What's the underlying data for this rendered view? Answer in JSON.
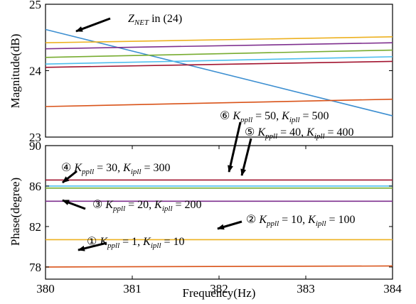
{
  "chart_data": [
    {
      "type": "line",
      "panel": "magnitude",
      "ylabel": "Magnitude(dB)",
      "xlim": [
        380,
        384
      ],
      "ylim": [
        23,
        25
      ],
      "yticks": [
        23,
        24,
        25
      ],
      "grid": false,
      "series": [
        {
          "label": "ZNET in (24)",
          "color": "#3d8fd1",
          "x": [
            380,
            384
          ],
          "y": [
            24.62,
            23.32
          ]
        },
        {
          "color": "#edb120",
          "x": [
            380,
            384
          ],
          "y": [
            24.42,
            24.51
          ]
        },
        {
          "color": "#7e2f8e",
          "x": [
            380,
            384
          ],
          "y": [
            24.33,
            24.42
          ]
        },
        {
          "color": "#77ac30",
          "x": [
            380,
            384
          ],
          "y": [
            24.2,
            24.31
          ]
        },
        {
          "color": "#4dbeee",
          "x": [
            380,
            384
          ],
          "y": [
            24.1,
            24.21
          ]
        },
        {
          "color": "#a2142f",
          "x": [
            380,
            384
          ],
          "y": [
            24.05,
            24.14
          ]
        },
        {
          "color": "#d95319",
          "x": [
            380,
            384
          ],
          "y": [
            23.46,
            23.57
          ]
        }
      ],
      "annotations": [
        {
          "text": "Z",
          "sub": "NET",
          "suffix": " in (24)"
        }
      ]
    },
    {
      "type": "line",
      "panel": "phase",
      "ylabel": "Phase(degree)",
      "xlabel": "Frequency(Hz)",
      "xlim": [
        380,
        384
      ],
      "ylim": [
        76.8,
        90
      ],
      "xticks": [
        380,
        381,
        382,
        383,
        384
      ],
      "yticks": [
        78,
        82,
        86,
        90
      ],
      "grid": false,
      "series": [
        {
          "color": "#a2142f",
          "x": [
            380,
            384
          ],
          "y": [
            86.6,
            86.6
          ]
        },
        {
          "color": "#4dbeee",
          "x": [
            380,
            384
          ],
          "y": [
            86.0,
            86.0
          ]
        },
        {
          "color": "#77ac30",
          "x": [
            380,
            384
          ],
          "y": [
            85.8,
            85.8
          ]
        },
        {
          "color": "#7e2f8e",
          "x": [
            380,
            384
          ],
          "y": [
            84.5,
            84.5
          ]
        },
        {
          "color": "#edb120",
          "x": [
            380,
            384
          ],
          "y": [
            80.7,
            80.7
          ]
        },
        {
          "color": "#d95319",
          "x": [
            380,
            384
          ],
          "y": [
            78.0,
            78.1
          ]
        }
      ],
      "annotations": [
        {
          "num": "⑥",
          "a": "50",
          "b": "500"
        },
        {
          "num": "⑤",
          "a": "40",
          "b": "400"
        },
        {
          "num": "④",
          "a": "30",
          "b": "300"
        },
        {
          "num": "③",
          "a": "20",
          "b": "200"
        },
        {
          "num": "②",
          "a": "10",
          "b": "100"
        },
        {
          "num": "①",
          "a": "1",
          "b": "10"
        }
      ],
      "param_names": {
        "k": "K",
        "p_sub": "ppll",
        "i_sub": "ipll"
      }
    }
  ]
}
